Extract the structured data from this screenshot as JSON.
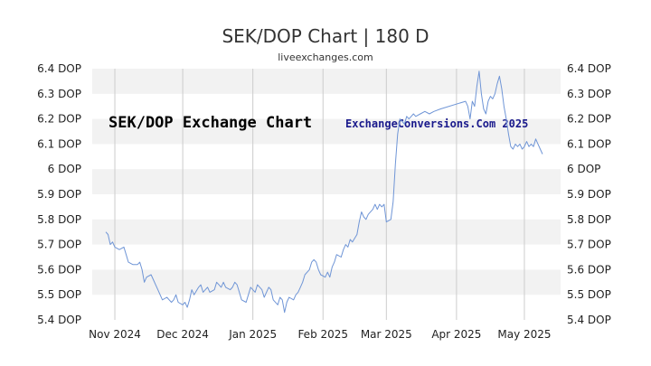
{
  "title": "SEK/DOP Chart | 180 D",
  "subtitle": "liveexchanges.com",
  "watermark_left": "SEK/DOP Exchange Chart",
  "watermark_right": "ExchangeConversions.Com 2025",
  "colors": {
    "line": "#6f95d6",
    "band": "#f2f2f2",
    "grid": "#cccccc",
    "text": "#333333",
    "watermark_right": "#1a1a8c"
  },
  "chart_data": {
    "type": "line",
    "title": "SEK/DOP Chart | 180 D",
    "ylim": [
      5.4,
      6.4
    ],
    "y_ticks": [
      {
        "value": 6.4,
        "label": "6.4 DOP"
      },
      {
        "value": 6.3,
        "label": "6.3 DOP"
      },
      {
        "value": 6.2,
        "label": "6.2 DOP"
      },
      {
        "value": 6.1,
        "label": "6.1 DOP"
      },
      {
        "value": 6.0,
        "label": "6 DOP"
      },
      {
        "value": 5.9,
        "label": "5.9 DOP"
      },
      {
        "value": 5.8,
        "label": "5.8 DOP"
      },
      {
        "value": 5.7,
        "label": "5.7 DOP"
      },
      {
        "value": 5.6,
        "label": "5.6 DOP"
      },
      {
        "value": 5.5,
        "label": "5.5 DOP"
      },
      {
        "value": 5.4,
        "label": "5.4 DOP"
      }
    ],
    "xlim": [
      "2024-10-22",
      "2025-05-17"
    ],
    "x_ticks": [
      {
        "date": "2024-11-01",
        "label": "Nov 2024"
      },
      {
        "date": "2024-12-01",
        "label": "Dec 2024"
      },
      {
        "date": "2025-01-01",
        "label": "Jan 2025"
      },
      {
        "date": "2025-02-01",
        "label": "Feb 2025"
      },
      {
        "date": "2025-03-01",
        "label": "Mar 2025"
      },
      {
        "date": "2025-04-01",
        "label": "Apr 2025"
      },
      {
        "date": "2025-05-01",
        "label": "May 2025"
      }
    ],
    "grid": true,
    "series": [
      {
        "points": [
          [
            "2024-10-28",
            5.75
          ],
          [
            "2024-10-29",
            5.74
          ],
          [
            "2024-10-30",
            5.7
          ],
          [
            "2024-10-31",
            5.71
          ],
          [
            "2024-11-01",
            5.69
          ],
          [
            "2024-11-03",
            5.68
          ],
          [
            "2024-11-05",
            5.69
          ],
          [
            "2024-11-06",
            5.66
          ],
          [
            "2024-11-07",
            5.63
          ],
          [
            "2024-11-09",
            5.62
          ],
          [
            "2024-11-11",
            5.62
          ],
          [
            "2024-11-12",
            5.63
          ],
          [
            "2024-11-13",
            5.6
          ],
          [
            "2024-11-14",
            5.55
          ],
          [
            "2024-11-15",
            5.57
          ],
          [
            "2024-11-17",
            5.58
          ],
          [
            "2024-11-18",
            5.56
          ],
          [
            "2024-11-19",
            5.54
          ],
          [
            "2024-11-20",
            5.52
          ],
          [
            "2024-11-21",
            5.5
          ],
          [
            "2024-11-22",
            5.48
          ],
          [
            "2024-11-24",
            5.49
          ],
          [
            "2024-11-25",
            5.48
          ],
          [
            "2024-11-26",
            5.47
          ],
          [
            "2024-11-27",
            5.48
          ],
          [
            "2024-11-28",
            5.5
          ],
          [
            "2024-11-29",
            5.47
          ],
          [
            "2024-12-01",
            5.46
          ],
          [
            "2024-12-02",
            5.47
          ],
          [
            "2024-12-03",
            5.45
          ],
          [
            "2024-12-04",
            5.48
          ],
          [
            "2024-12-05",
            5.52
          ],
          [
            "2024-12-06",
            5.5
          ],
          [
            "2024-12-08",
            5.53
          ],
          [
            "2024-12-09",
            5.54
          ],
          [
            "2024-12-10",
            5.51
          ],
          [
            "2024-12-11",
            5.52
          ],
          [
            "2024-12-12",
            5.53
          ],
          [
            "2024-12-13",
            5.51
          ],
          [
            "2024-12-15",
            5.52
          ],
          [
            "2024-12-16",
            5.55
          ],
          [
            "2024-12-17",
            5.54
          ],
          [
            "2024-12-18",
            5.53
          ],
          [
            "2024-12-19",
            5.55
          ],
          [
            "2024-12-20",
            5.53
          ],
          [
            "2024-12-22",
            5.52
          ],
          [
            "2024-12-23",
            5.53
          ],
          [
            "2024-12-24",
            5.55
          ],
          [
            "2024-12-25",
            5.54
          ],
          [
            "2024-12-26",
            5.51
          ],
          [
            "2024-12-27",
            5.48
          ],
          [
            "2024-12-29",
            5.47
          ],
          [
            "2024-12-30",
            5.5
          ],
          [
            "2024-12-31",
            5.53
          ],
          [
            "2025-01-02",
            5.51
          ],
          [
            "2025-01-03",
            5.54
          ],
          [
            "2025-01-05",
            5.52
          ],
          [
            "2025-01-06",
            5.49
          ],
          [
            "2025-01-07",
            5.51
          ],
          [
            "2025-01-08",
            5.53
          ],
          [
            "2025-01-09",
            5.52
          ],
          [
            "2025-01-10",
            5.48
          ],
          [
            "2025-01-12",
            5.46
          ],
          [
            "2025-01-13",
            5.49
          ],
          [
            "2025-01-14",
            5.48
          ],
          [
            "2025-01-15",
            5.43
          ],
          [
            "2025-01-16",
            5.47
          ],
          [
            "2025-01-17",
            5.49
          ],
          [
            "2025-01-19",
            5.48
          ],
          [
            "2025-01-20",
            5.5
          ],
          [
            "2025-01-21",
            5.51
          ],
          [
            "2025-01-22",
            5.53
          ],
          [
            "2025-01-23",
            5.55
          ],
          [
            "2025-01-24",
            5.58
          ],
          [
            "2025-01-26",
            5.6
          ],
          [
            "2025-01-27",
            5.63
          ],
          [
            "2025-01-28",
            5.64
          ],
          [
            "2025-01-29",
            5.63
          ],
          [
            "2025-01-30",
            5.6
          ],
          [
            "2025-01-31",
            5.58
          ],
          [
            "2025-02-02",
            5.57
          ],
          [
            "2025-02-03",
            5.59
          ],
          [
            "2025-02-04",
            5.57
          ],
          [
            "2025-02-05",
            5.61
          ],
          [
            "2025-02-06",
            5.63
          ],
          [
            "2025-02-07",
            5.66
          ],
          [
            "2025-02-09",
            5.65
          ],
          [
            "2025-02-10",
            5.68
          ],
          [
            "2025-02-11",
            5.7
          ],
          [
            "2025-02-12",
            5.69
          ],
          [
            "2025-02-13",
            5.72
          ],
          [
            "2025-02-14",
            5.71
          ],
          [
            "2025-02-16",
            5.74
          ],
          [
            "2025-02-17",
            5.79
          ],
          [
            "2025-02-18",
            5.83
          ],
          [
            "2025-02-19",
            5.81
          ],
          [
            "2025-02-20",
            5.8
          ],
          [
            "2025-02-21",
            5.82
          ],
          [
            "2025-02-23",
            5.84
          ],
          [
            "2025-02-24",
            5.86
          ],
          [
            "2025-02-25",
            5.84
          ],
          [
            "2025-02-26",
            5.86
          ],
          [
            "2025-02-27",
            5.85
          ],
          [
            "2025-02-28",
            5.86
          ],
          [
            "2025-03-01",
            5.79
          ],
          [
            "2025-03-03",
            5.8
          ],
          [
            "2025-03-04",
            5.87
          ],
          [
            "2025-03-05",
            6.02
          ],
          [
            "2025-03-06",
            6.14
          ],
          [
            "2025-03-07",
            6.2
          ],
          [
            "2025-03-09",
            6.18
          ],
          [
            "2025-03-10",
            6.21
          ],
          [
            "2025-03-11",
            6.2
          ],
          [
            "2025-03-13",
            6.22
          ],
          [
            "2025-03-14",
            6.21
          ],
          [
            "2025-03-16",
            6.22
          ],
          [
            "2025-03-18",
            6.23
          ],
          [
            "2025-03-20",
            6.22
          ],
          [
            "2025-03-22",
            6.23
          ],
          [
            "2025-03-25",
            6.24
          ],
          [
            "2025-04-05",
            6.27
          ],
          [
            "2025-04-06",
            6.25
          ],
          [
            "2025-04-07",
            6.2
          ],
          [
            "2025-04-08",
            6.27
          ],
          [
            "2025-04-09",
            6.25
          ],
          [
            "2025-04-10",
            6.33
          ],
          [
            "2025-04-11",
            6.39
          ],
          [
            "2025-04-12",
            6.3
          ],
          [
            "2025-04-13",
            6.24
          ],
          [
            "2025-04-14",
            6.22
          ],
          [
            "2025-04-15",
            6.27
          ],
          [
            "2025-04-16",
            6.29
          ],
          [
            "2025-04-17",
            6.28
          ],
          [
            "2025-04-18",
            6.3
          ],
          [
            "2025-04-19",
            6.34
          ],
          [
            "2025-04-20",
            6.37
          ],
          [
            "2025-04-21",
            6.32
          ],
          [
            "2025-04-22",
            6.25
          ],
          [
            "2025-04-23",
            6.2
          ],
          [
            "2025-04-24",
            6.14
          ],
          [
            "2025-04-25",
            6.09
          ],
          [
            "2025-04-26",
            6.08
          ],
          [
            "2025-04-27",
            6.1
          ],
          [
            "2025-04-28",
            6.09
          ],
          [
            "2025-04-29",
            6.1
          ],
          [
            "2025-04-30",
            6.08
          ],
          [
            "2025-05-01",
            6.09
          ],
          [
            "2025-05-02",
            6.11
          ],
          [
            "2025-05-03",
            6.09
          ],
          [
            "2025-05-04",
            6.1
          ],
          [
            "2025-05-05",
            6.09
          ],
          [
            "2025-05-06",
            6.12
          ],
          [
            "2025-05-07",
            6.1
          ],
          [
            "2025-05-08",
            6.08
          ],
          [
            "2025-05-09",
            6.06
          ]
        ]
      }
    ]
  }
}
